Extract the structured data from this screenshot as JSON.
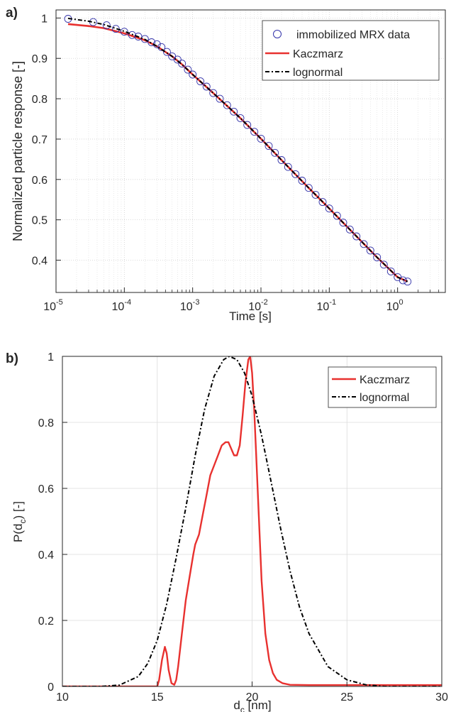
{
  "chart_data": [
    {
      "panel_label": "a)",
      "type": "line",
      "xscale": "log",
      "xlabel": "Time [s]",
      "ylabel": "Normalized particle response [-]",
      "xlim": [
        1e-05,
        5
      ],
      "ylim": [
        0.32,
        1.02
      ],
      "grid": true,
      "minor_grid": true,
      "legend_position": "top-right",
      "xtick_labels": [
        {
          "base": "10",
          "exp": "-5"
        },
        {
          "base": "10",
          "exp": "-4"
        },
        {
          "base": "10",
          "exp": "-3"
        },
        {
          "base": "10",
          "exp": "-2"
        },
        {
          "base": "10",
          "exp": "-1"
        },
        {
          "base": "10",
          "exp": "0"
        }
      ],
      "xticks": [
        1e-05,
        0.0001,
        0.001,
        0.01,
        0.1,
        1
      ],
      "yticks": [
        0.4,
        0.5,
        0.6,
        0.7,
        0.8,
        0.9,
        1
      ],
      "ytick_labels": [
        "0.4",
        "0.5",
        "0.6",
        "0.7",
        "0.8",
        "0.9",
        "1"
      ],
      "series": [
        {
          "name": "immobilized MRX data",
          "style": "markers",
          "marker": "circle",
          "color": "#3333aa",
          "x": [
            1.5e-05,
            3.5e-05,
            5.5e-05,
            7.5e-05,
            0.0001,
            0.00013,
            0.00016,
            0.0002,
            0.00025,
            0.0003,
            0.00035,
            0.00042,
            0.0005,
            0.0006,
            0.0007,
            0.00085,
            0.001,
            0.0013,
            0.0016,
            0.002,
            0.0025,
            0.0032,
            0.004,
            0.005,
            0.0063,
            0.008,
            0.01,
            0.013,
            0.016,
            0.02,
            0.025,
            0.032,
            0.04,
            0.05,
            0.063,
            0.08,
            0.1,
            0.13,
            0.16,
            0.2,
            0.25,
            0.32,
            0.4,
            0.5,
            0.63,
            0.8,
            1.0,
            1.2,
            1.4
          ],
          "y": [
            0.998,
            0.99,
            0.982,
            0.973,
            0.966,
            0.958,
            0.954,
            0.948,
            0.94,
            0.935,
            0.928,
            0.916,
            0.905,
            0.897,
            0.887,
            0.872,
            0.86,
            0.843,
            0.83,
            0.814,
            0.8,
            0.784,
            0.768,
            0.752,
            0.735,
            0.718,
            0.701,
            0.683,
            0.666,
            0.648,
            0.631,
            0.613,
            0.597,
            0.579,
            0.562,
            0.544,
            0.528,
            0.51,
            0.493,
            0.476,
            0.459,
            0.44,
            0.424,
            0.407,
            0.389,
            0.372,
            0.358,
            0.35,
            0.347
          ]
        },
        {
          "name": "Kaczmarz",
          "style": "solid",
          "color": "#e8312f",
          "x": [
            1.5e-05,
            3e-05,
            5e-05,
            0.0001,
            0.0002,
            0.0003,
            0.0005,
            0.0007,
            0.001,
            0.002,
            0.005,
            0.01,
            0.02,
            0.05,
            0.1,
            0.2,
            0.5,
            1.0,
            1.4
          ],
          "y": [
            0.985,
            0.98,
            0.975,
            0.962,
            0.945,
            0.93,
            0.905,
            0.885,
            0.86,
            0.814,
            0.752,
            0.701,
            0.648,
            0.579,
            0.528,
            0.476,
            0.407,
            0.358,
            0.347
          ]
        },
        {
          "name": "lognormal",
          "style": "dash-dot",
          "color": "#000000",
          "x": [
            1.5e-05,
            3e-05,
            5e-05,
            0.0001,
            0.0002,
            0.0003,
            0.0005,
            0.0007,
            0.001,
            0.002,
            0.005,
            0.01,
            0.02,
            0.05,
            0.1,
            0.2,
            0.5,
            1.0,
            1.4
          ],
          "y": [
            0.999,
            0.992,
            0.984,
            0.967,
            0.947,
            0.93,
            0.905,
            0.885,
            0.86,
            0.814,
            0.752,
            0.701,
            0.648,
            0.579,
            0.528,
            0.476,
            0.407,
            0.358,
            0.347
          ]
        }
      ]
    },
    {
      "panel_label": "b)",
      "type": "line",
      "xscale": "linear",
      "xlabel": {
        "base": "d",
        "sub": "c",
        "rest": " [nm]"
      },
      "ylabel": {
        "base": "P(d",
        "sub": "c",
        "rest": ") [-]"
      },
      "xlim": [
        10,
        30
      ],
      "ylim": [
        0,
        1
      ],
      "grid": true,
      "minor_grid": false,
      "legend_position": "top-right",
      "xticks": [
        10,
        15,
        20,
        25,
        30
      ],
      "xtick_labels": [
        "10",
        "15",
        "20",
        "25",
        "30"
      ],
      "yticks": [
        0,
        0.2,
        0.4,
        0.6,
        0.8,
        1
      ],
      "ytick_labels": [
        "0",
        "0.2",
        "0.4",
        "0.6",
        "0.8",
        "1"
      ],
      "series": [
        {
          "name": "Kaczmarz",
          "style": "solid",
          "color": "#e8312f",
          "x": [
            10,
            15,
            15.1,
            15.25,
            15.4,
            15.5,
            15.6,
            15.75,
            15.9,
            16.0,
            16.1,
            16.3,
            16.5,
            16.7,
            16.9,
            17.0,
            17.2,
            17.4,
            17.6,
            17.8,
            18.0,
            18.2,
            18.4,
            18.6,
            18.75,
            18.9,
            19.05,
            19.2,
            19.35,
            19.5,
            19.65,
            19.8,
            19.9,
            20.0,
            20.1,
            20.2,
            20.35,
            20.5,
            20.7,
            20.9,
            21.1,
            21.3,
            21.6,
            22.0,
            23.0,
            26.0,
            30.0
          ],
          "y": [
            0.0,
            0.0,
            0.02,
            0.08,
            0.12,
            0.1,
            0.05,
            0.01,
            0.005,
            0.02,
            0.06,
            0.16,
            0.26,
            0.33,
            0.4,
            0.43,
            0.46,
            0.52,
            0.58,
            0.64,
            0.67,
            0.7,
            0.73,
            0.74,
            0.74,
            0.72,
            0.7,
            0.7,
            0.73,
            0.82,
            0.92,
            0.99,
            1.0,
            0.95,
            0.85,
            0.72,
            0.52,
            0.32,
            0.16,
            0.08,
            0.04,
            0.02,
            0.01,
            0.005,
            0.004,
            0.004,
            0.004
          ]
        },
        {
          "name": "lognormal",
          "style": "dash-dot",
          "color": "#000000",
          "x": [
            10,
            12,
            13,
            14,
            14.5,
            15,
            15.5,
            16,
            16.5,
            17,
            17.5,
            18,
            18.5,
            18.8,
            19.2,
            19.6,
            20,
            20.5,
            21,
            21.5,
            22,
            22.5,
            23,
            24,
            25,
            26,
            27,
            28,
            30
          ],
          "y": [
            0.0,
            0.0,
            0.004,
            0.03,
            0.07,
            0.14,
            0.25,
            0.39,
            0.54,
            0.7,
            0.84,
            0.94,
            0.99,
            1.0,
            0.99,
            0.95,
            0.88,
            0.76,
            0.62,
            0.48,
            0.35,
            0.24,
            0.16,
            0.06,
            0.02,
            0.005,
            0.0,
            0.0,
            0.0
          ]
        }
      ]
    }
  ]
}
